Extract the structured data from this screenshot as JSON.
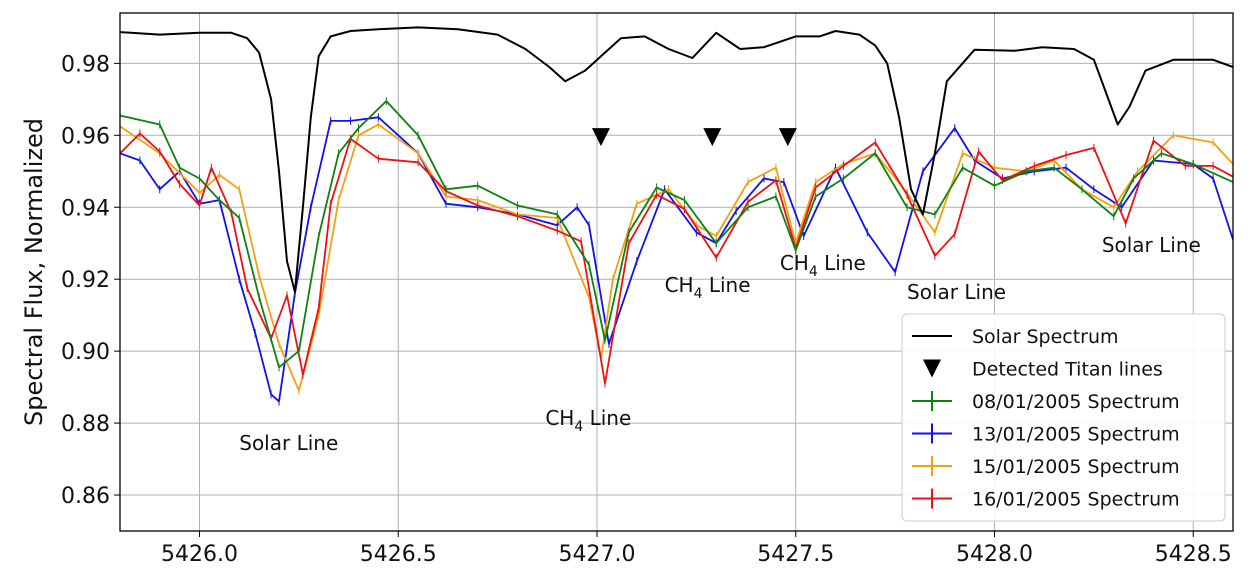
{
  "chart_data": {
    "type": "line",
    "title": "",
    "xlabel": "",
    "ylabel": "Spectral Flux, Normalized",
    "xlim": [
      5425.8,
      5428.6
    ],
    "ylim": [
      0.85,
      0.994
    ],
    "grid": true,
    "legend_position": "lower-right",
    "x_ticks": [
      "5426.0",
      "5426.5",
      "5427.0",
      "5427.5",
      "5428.0",
      "5428.5"
    ],
    "y_ticks": [
      "0.86",
      "0.88",
      "0.90",
      "0.92",
      "0.94",
      "0.96",
      "0.98"
    ],
    "annotations": [
      {
        "base": "Solar Line",
        "sub": "",
        "tail": "",
        "x": 5426.1,
        "y": 0.8725
      },
      {
        "base": "CH",
        "sub": "4",
        "tail": " Line",
        "x": 5426.87,
        "y": 0.8795
      },
      {
        "base": "CH",
        "sub": "4",
        "tail": " Line",
        "x": 5427.17,
        "y": 0.9165
      },
      {
        "base": "CH",
        "sub": "4",
        "tail": " Line",
        "x": 5427.46,
        "y": 0.9225
      },
      {
        "base": "Solar Line",
        "sub": "",
        "tail": "",
        "x": 5427.78,
        "y": 0.9145
      },
      {
        "base": "Solar Line",
        "sub": "",
        "tail": "",
        "x": 5428.27,
        "y": 0.9275
      }
    ],
    "series": [
      {
        "name": "Solar Spectrum",
        "color": "#000000",
        "style": "line",
        "x": [
          5425.8,
          5425.9,
          5426.0,
          5426.08,
          5426.12,
          5426.15,
          5426.18,
          5426.2,
          5426.22,
          5426.24,
          5426.26,
          5426.28,
          5426.3,
          5426.33,
          5426.38,
          5426.45,
          5426.55,
          5426.65,
          5426.75,
          5426.82,
          5426.88,
          5426.92,
          5426.97,
          5427.02,
          5427.06,
          5427.12,
          5427.18,
          5427.24,
          5427.3,
          5427.36,
          5427.42,
          5427.5,
          5427.56,
          5427.6,
          5427.66,
          5427.7,
          5427.73,
          5427.76,
          5427.79,
          5427.82,
          5427.85,
          5427.88,
          5427.95,
          5428.05,
          5428.12,
          5428.2,
          5428.25,
          5428.28,
          5428.31,
          5428.34,
          5428.38,
          5428.45,
          5428.55,
          5428.6
        ],
        "values": [
          0.9887,
          0.988,
          0.9885,
          0.9885,
          0.987,
          0.983,
          0.97,
          0.95,
          0.925,
          0.9165,
          0.94,
          0.965,
          0.982,
          0.9875,
          0.989,
          0.9895,
          0.99,
          0.9895,
          0.988,
          0.984,
          0.979,
          0.975,
          0.978,
          0.983,
          0.987,
          0.9875,
          0.984,
          0.9815,
          0.9885,
          0.984,
          0.9845,
          0.9875,
          0.9875,
          0.989,
          0.988,
          0.985,
          0.98,
          0.965,
          0.945,
          0.938,
          0.955,
          0.975,
          0.9838,
          0.9835,
          0.9845,
          0.984,
          0.981,
          0.972,
          0.963,
          0.968,
          0.978,
          0.981,
          0.981,
          0.979
        ]
      },
      {
        "name": "08/01/2005 Spectrum",
        "color": "#108010",
        "style": "errorbar",
        "x": [
          5425.8,
          5425.9,
          5425.95,
          5426.0,
          5426.05,
          5426.1,
          5426.15,
          5426.2,
          5426.25,
          5426.3,
          5426.35,
          5426.4,
          5426.47,
          5426.55,
          5426.62,
          5426.7,
          5426.8,
          5426.9,
          5426.98,
          5427.02,
          5427.08,
          5427.15,
          5427.22,
          5427.3,
          5427.38,
          5427.45,
          5427.5,
          5427.55,
          5427.62,
          5427.7,
          5427.78,
          5427.85,
          5427.92,
          5428.0,
          5428.08,
          5428.15,
          5428.22,
          5428.3,
          5428.35,
          5428.42,
          5428.5,
          5428.6
        ],
        "values": [
          0.9655,
          0.963,
          0.951,
          0.948,
          0.942,
          0.937,
          0.915,
          0.8955,
          0.9,
          0.932,
          0.955,
          0.962,
          0.9695,
          0.96,
          0.945,
          0.946,
          0.9405,
          0.938,
          0.924,
          0.903,
          0.933,
          0.9455,
          0.942,
          0.93,
          0.94,
          0.943,
          0.928,
          0.943,
          0.948,
          0.955,
          0.94,
          0.938,
          0.951,
          0.946,
          0.95,
          0.951,
          0.945,
          0.9375,
          0.948,
          0.955,
          0.952,
          0.947
        ]
      },
      {
        "name": "13/01/2005 Spectrum",
        "color": "#1010f0",
        "style": "errorbar",
        "x": [
          5425.8,
          5425.85,
          5425.9,
          5425.95,
          5426.0,
          5426.05,
          5426.1,
          5426.14,
          5426.18,
          5426.2,
          5426.24,
          5426.28,
          5426.33,
          5426.38,
          5426.45,
          5426.55,
          5426.62,
          5426.7,
          5426.8,
          5426.9,
          5426.95,
          5426.98,
          5427.03,
          5427.1,
          5427.17,
          5427.25,
          5427.3,
          5427.35,
          5427.42,
          5427.47,
          5427.52,
          5427.6,
          5427.68,
          5427.75,
          5427.82,
          5427.9,
          5427.95,
          5428.02,
          5428.1,
          5428.18,
          5428.25,
          5428.32,
          5428.4,
          5428.5,
          5428.55,
          5428.6
        ],
        "values": [
          0.955,
          0.953,
          0.945,
          0.95,
          0.941,
          0.942,
          0.92,
          0.905,
          0.888,
          0.886,
          0.916,
          0.94,
          0.964,
          0.964,
          0.965,
          0.955,
          0.941,
          0.94,
          0.938,
          0.935,
          0.94,
          0.935,
          0.902,
          0.925,
          0.945,
          0.933,
          0.93,
          0.939,
          0.948,
          0.947,
          0.932,
          0.951,
          0.933,
          0.922,
          0.95,
          0.962,
          0.953,
          0.948,
          0.95,
          0.951,
          0.945,
          0.94,
          0.953,
          0.952,
          0.948,
          0.931
        ]
      },
      {
        "name": "15/01/2005 Spectrum",
        "color": "#f5a010",
        "style": "errorbar",
        "x": [
          5425.8,
          5425.9,
          5426.0,
          5426.05,
          5426.1,
          5426.15,
          5426.2,
          5426.25,
          5426.3,
          5426.35,
          5426.4,
          5426.45,
          5426.55,
          5426.62,
          5426.7,
          5426.8,
          5426.9,
          5426.98,
          5427.01,
          5427.04,
          5427.1,
          5427.18,
          5427.25,
          5427.3,
          5427.38,
          5427.45,
          5427.5,
          5427.55,
          5427.62,
          5427.7,
          5427.78,
          5427.85,
          5427.92,
          5428.0,
          5428.08,
          5428.15,
          5428.22,
          5428.3,
          5428.36,
          5428.45,
          5428.55,
          5428.6
        ],
        "values": [
          0.9625,
          0.955,
          0.944,
          0.949,
          0.945,
          0.921,
          0.902,
          0.889,
          0.91,
          0.942,
          0.96,
          0.963,
          0.955,
          0.943,
          0.942,
          0.938,
          0.937,
          0.915,
          0.898,
          0.92,
          0.941,
          0.945,
          0.935,
          0.932,
          0.947,
          0.951,
          0.93,
          0.947,
          0.952,
          0.955,
          0.944,
          0.933,
          0.955,
          0.951,
          0.95,
          0.953,
          0.945,
          0.94,
          0.95,
          0.96,
          0.958,
          0.952
        ]
      },
      {
        "name": "16/01/2005 Spectrum",
        "color": "#f01010",
        "style": "errorbar",
        "x": [
          5425.8,
          5425.85,
          5425.9,
          5425.95,
          5426.0,
          5426.03,
          5426.08,
          5426.12,
          5426.18,
          5426.22,
          5426.26,
          5426.3,
          5426.33,
          5426.38,
          5426.45,
          5426.55,
          5426.62,
          5426.7,
          5426.8,
          5426.9,
          5426.96,
          5427.02,
          5427.08,
          5427.15,
          5427.22,
          5427.3,
          5427.38,
          5427.45,
          5427.5,
          5427.55,
          5427.62,
          5427.7,
          5427.78,
          5427.85,
          5427.9,
          5427.96,
          5428.02,
          5428.1,
          5428.18,
          5428.25,
          5428.33,
          5428.4,
          5428.48,
          5428.55,
          5428.6
        ],
        "values": [
          0.955,
          0.9605,
          0.9555,
          0.9465,
          0.9405,
          0.951,
          0.9385,
          0.9175,
          0.9035,
          0.9155,
          0.8935,
          0.912,
          0.941,
          0.959,
          0.9535,
          0.9525,
          0.9445,
          0.9405,
          0.9375,
          0.9335,
          0.9305,
          0.891,
          0.93,
          0.9435,
          0.9395,
          0.926,
          0.9415,
          0.9475,
          0.9285,
          0.9455,
          0.9515,
          0.958,
          0.9435,
          0.9265,
          0.9325,
          0.9555,
          0.9475,
          0.9515,
          0.9545,
          0.9565,
          0.9355,
          0.9585,
          0.9515,
          0.9515,
          0.9485
        ]
      },
      {
        "name": "Detected Titan lines",
        "color": "#000000",
        "style": "marker",
        "marker": "triangle-down",
        "x": [
          5427.01,
          5427.29,
          5427.48
        ],
        "values": [
          0.9595,
          0.9595,
          0.9595
        ]
      }
    ]
  }
}
